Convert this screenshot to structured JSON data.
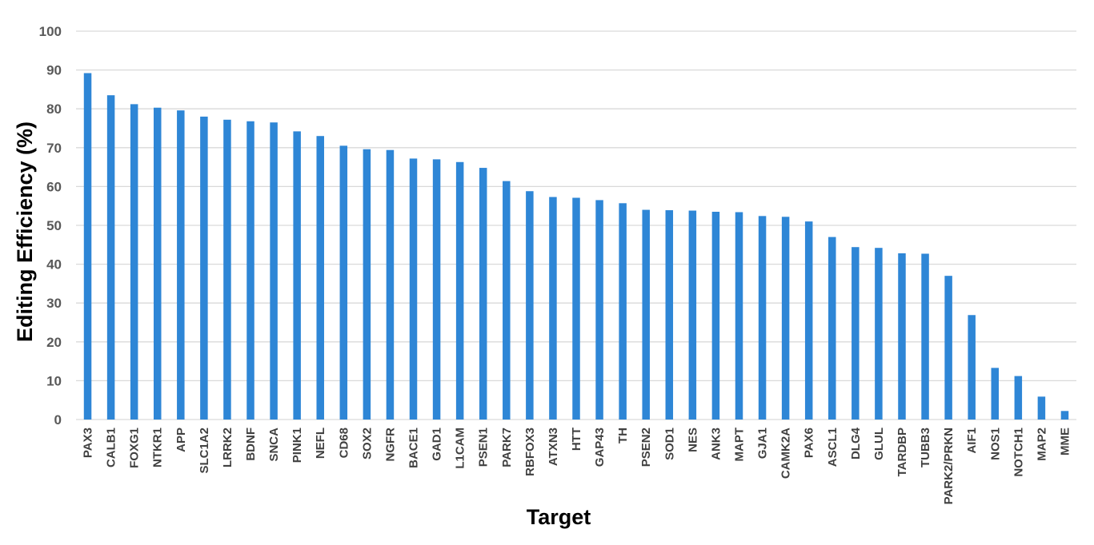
{
  "chart_data": {
    "type": "bar",
    "title": "",
    "xlabel": "Target",
    "ylabel": "Editing Efficiency (%)",
    "ylim": [
      0,
      100
    ],
    "yticks": [
      0,
      10,
      20,
      30,
      40,
      50,
      60,
      70,
      80,
      90,
      100
    ],
    "grid": true,
    "legend": "none",
    "bar_color": "#2e86d6",
    "categories": [
      "PAX3",
      "CALB1",
      "FOXG1",
      "NTKR1",
      "APP",
      "SLC1A2",
      "LRRK2",
      "BDNF",
      "SNCA",
      "PINK1",
      "NEFL",
      "CD68",
      "SOX2",
      "NGFR",
      "BACE1",
      "GAD1",
      "L1CAM",
      "PSEN1",
      "PARK7",
      "RBFOX3",
      "ATXN3",
      "HTT",
      "GAP43",
      "TH",
      "PSEN2",
      "SOD1",
      "NES",
      "ANK3",
      "MAPT",
      "GJA1",
      "CAMK2A",
      "PAX6",
      "ASCL1",
      "DLG4",
      "GLUL",
      "TARDBP",
      "TUBB3",
      "PARK2/PRKN",
      "AIF1",
      "NOS1",
      "NOTCH1",
      "MAP2",
      "MME"
    ],
    "values": [
      89.2,
      83.5,
      81.2,
      80.3,
      79.6,
      78.0,
      77.2,
      76.8,
      76.5,
      74.2,
      73.0,
      70.5,
      69.6,
      69.4,
      67.2,
      67.0,
      66.3,
      64.8,
      61.4,
      58.8,
      57.3,
      57.1,
      56.5,
      55.7,
      54.0,
      53.9,
      53.8,
      53.5,
      53.4,
      52.4,
      52.2,
      51.0,
      47.0,
      44.4,
      44.2,
      42.8,
      42.7,
      37.0,
      26.9,
      13.3,
      11.2,
      5.9,
      2.2
    ]
  }
}
